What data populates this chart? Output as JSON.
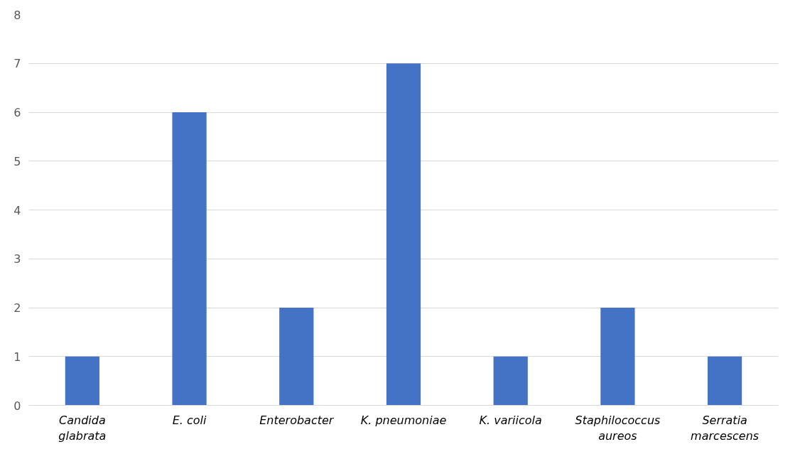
{
  "chart_data": {
    "type": "bar",
    "categories": [
      "Candida glabrata",
      "E. coli",
      "Enterobacter",
      "K. pneumoniae",
      "K. variicola",
      "Staphilococcus aureos",
      "Serratia marcescens"
    ],
    "values": [
      1,
      6,
      2,
      7,
      1,
      2,
      1
    ],
    "color": "#4472c4",
    "ylim": [
      0,
      8
    ],
    "yticks": [
      0,
      1,
      2,
      3,
      4,
      5,
      6,
      7,
      8
    ],
    "grid": "y"
  }
}
